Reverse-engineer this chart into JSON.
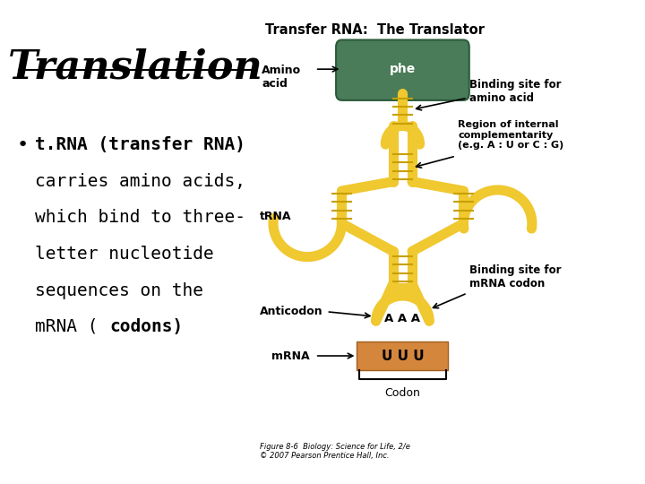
{
  "title": "Translation",
  "title_fontsize": 32,
  "background_color": "#ffffff",
  "text_color": "#000000",
  "figure_caption": "Figure 8-6  Biology: Science for Life, 2/e\n© 2007 Pearson Prentice Hall, Inc.",
  "diagram_title": "Transfer RNA:  The Translator",
  "amino_acid_label": "Amino\nacid",
  "amino_acid_color": "#4a7c59",
  "amino_acid_text": "phe",
  "mrna_color": "#d4863c",
  "mrna_text": "U U U",
  "mrna_label": "mRNA",
  "trna_color": "#f0c830",
  "trna_dark": "#c8a000",
  "anticodon_text": "A A A",
  "anticodon_label": "Anticodon",
  "codon_label": "Codon",
  "trna_label": "tRNA",
  "binding_amino": "Binding site for\namino acid",
  "binding_mrna": "Binding site for\nmRNA codon",
  "region_internal": "Region of internal\ncomplementarity\n(e.g. A : U or C : G)"
}
